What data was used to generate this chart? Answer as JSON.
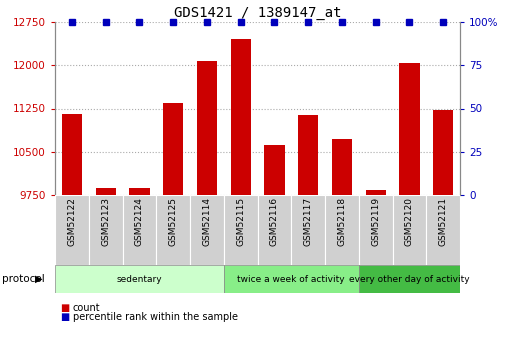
{
  "title": "GDS1421 / 1389147_at",
  "samples": [
    "GSM52122",
    "GSM52123",
    "GSM52124",
    "GSM52125",
    "GSM52114",
    "GSM52115",
    "GSM52116",
    "GSM52117",
    "GSM52118",
    "GSM52119",
    "GSM52120",
    "GSM52121"
  ],
  "counts": [
    11150,
    9870,
    9880,
    11350,
    12070,
    12450,
    10620,
    11130,
    10720,
    9840,
    12040,
    11230
  ],
  "percentiles": [
    100,
    100,
    100,
    100,
    100,
    100,
    100,
    100,
    100,
    100,
    100,
    100
  ],
  "ylim_left": [
    9750,
    12750
  ],
  "ylim_right": [
    0,
    100
  ],
  "yticks_left": [
    9750,
    10500,
    11250,
    12000,
    12750
  ],
  "yticks_right": [
    0,
    25,
    50,
    75,
    100
  ],
  "bar_color": "#cc0000",
  "dot_color": "#0000bb",
  "bar_bottom": 9750,
  "groups": [
    {
      "label": "sedentary",
      "start": 0,
      "end": 5,
      "color": "#ccffcc"
    },
    {
      "label": "twice a week of activity",
      "start": 5,
      "end": 9,
      "color": "#88ee88"
    },
    {
      "label": "every other day of activity",
      "start": 9,
      "end": 12,
      "color": "#44bb44"
    }
  ],
  "tick_label_color_left": "#cc0000",
  "tick_label_color_right": "#0000bb",
  "legend_count_color": "#cc0000",
  "legend_pct_color": "#0000bb",
  "cell_bg": "#d0d0d0",
  "cell_border": "#ffffff"
}
